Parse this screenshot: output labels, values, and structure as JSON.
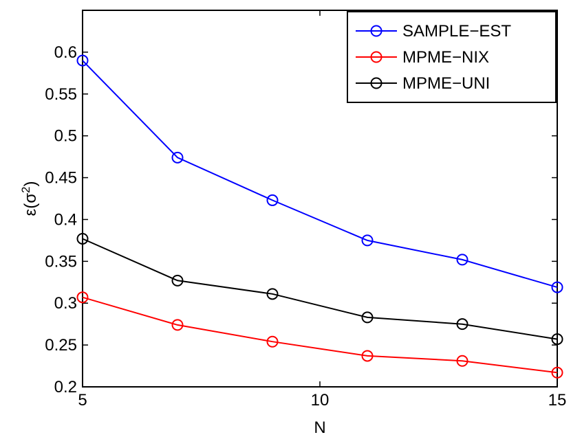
{
  "chart_data": {
    "type": "line",
    "xlabel": "N",
    "ylabel_base": "ε(σ",
    "ylabel_sup": "2",
    "ylabel_close": ")",
    "xlim": [
      5,
      15
    ],
    "ylim": [
      0.2,
      0.65
    ],
    "x_ticks": [
      5,
      10,
      15
    ],
    "x_tick_labels": [
      "5",
      "10",
      "15"
    ],
    "y_ticks": [
      0.2,
      0.25,
      0.3,
      0.35,
      0.4,
      0.45,
      0.5,
      0.55,
      0.6
    ],
    "y_tick_labels": [
      "0.2",
      "0.25",
      "0.3",
      "0.35",
      "0.4",
      "0.45",
      "0.5",
      "0.55",
      "0.6"
    ],
    "grid": false,
    "legend_position": "top-right",
    "x": [
      5,
      7,
      9,
      11,
      13,
      15
    ],
    "series": [
      {
        "name": "SAMPLE−EST",
        "color": "#0000ff",
        "marker": "circle",
        "values": [
          0.59,
          0.474,
          0.423,
          0.375,
          0.352,
          0.319
        ]
      },
      {
        "name": "MPME−NIX",
        "color": "#ff0000",
        "marker": "circle",
        "values": [
          0.307,
          0.274,
          0.254,
          0.237,
          0.231,
          0.217
        ]
      },
      {
        "name": "MPME−UNI",
        "color": "#000000",
        "marker": "circle",
        "values": [
          0.377,
          0.327,
          0.311,
          0.283,
          0.275,
          0.257
        ]
      }
    ]
  }
}
